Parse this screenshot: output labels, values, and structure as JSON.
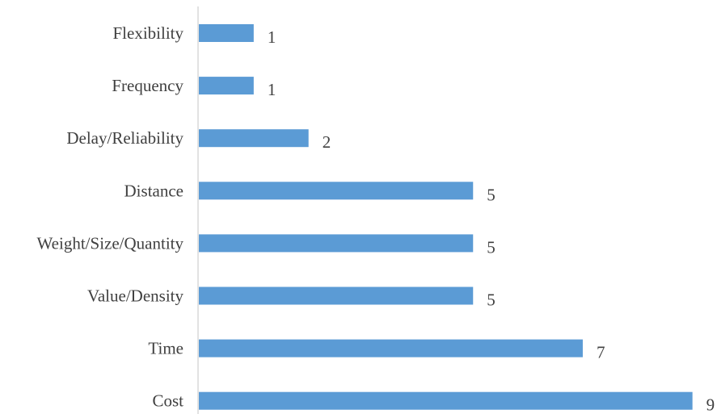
{
  "chart_data": {
    "type": "bar",
    "orientation": "horizontal",
    "categories": [
      "Flexibility",
      "Frequency",
      "Delay/Reliability",
      "Distance",
      "Weight/Size/Quantity",
      "Value/Density",
      "Time",
      "Cost"
    ],
    "values": [
      1,
      1,
      2,
      5,
      5,
      5,
      7,
      9
    ],
    "xlim": [
      0,
      9
    ],
    "grid": false,
    "legend": "none",
    "data_labels": true,
    "bar_color": "#5b9bd5"
  }
}
